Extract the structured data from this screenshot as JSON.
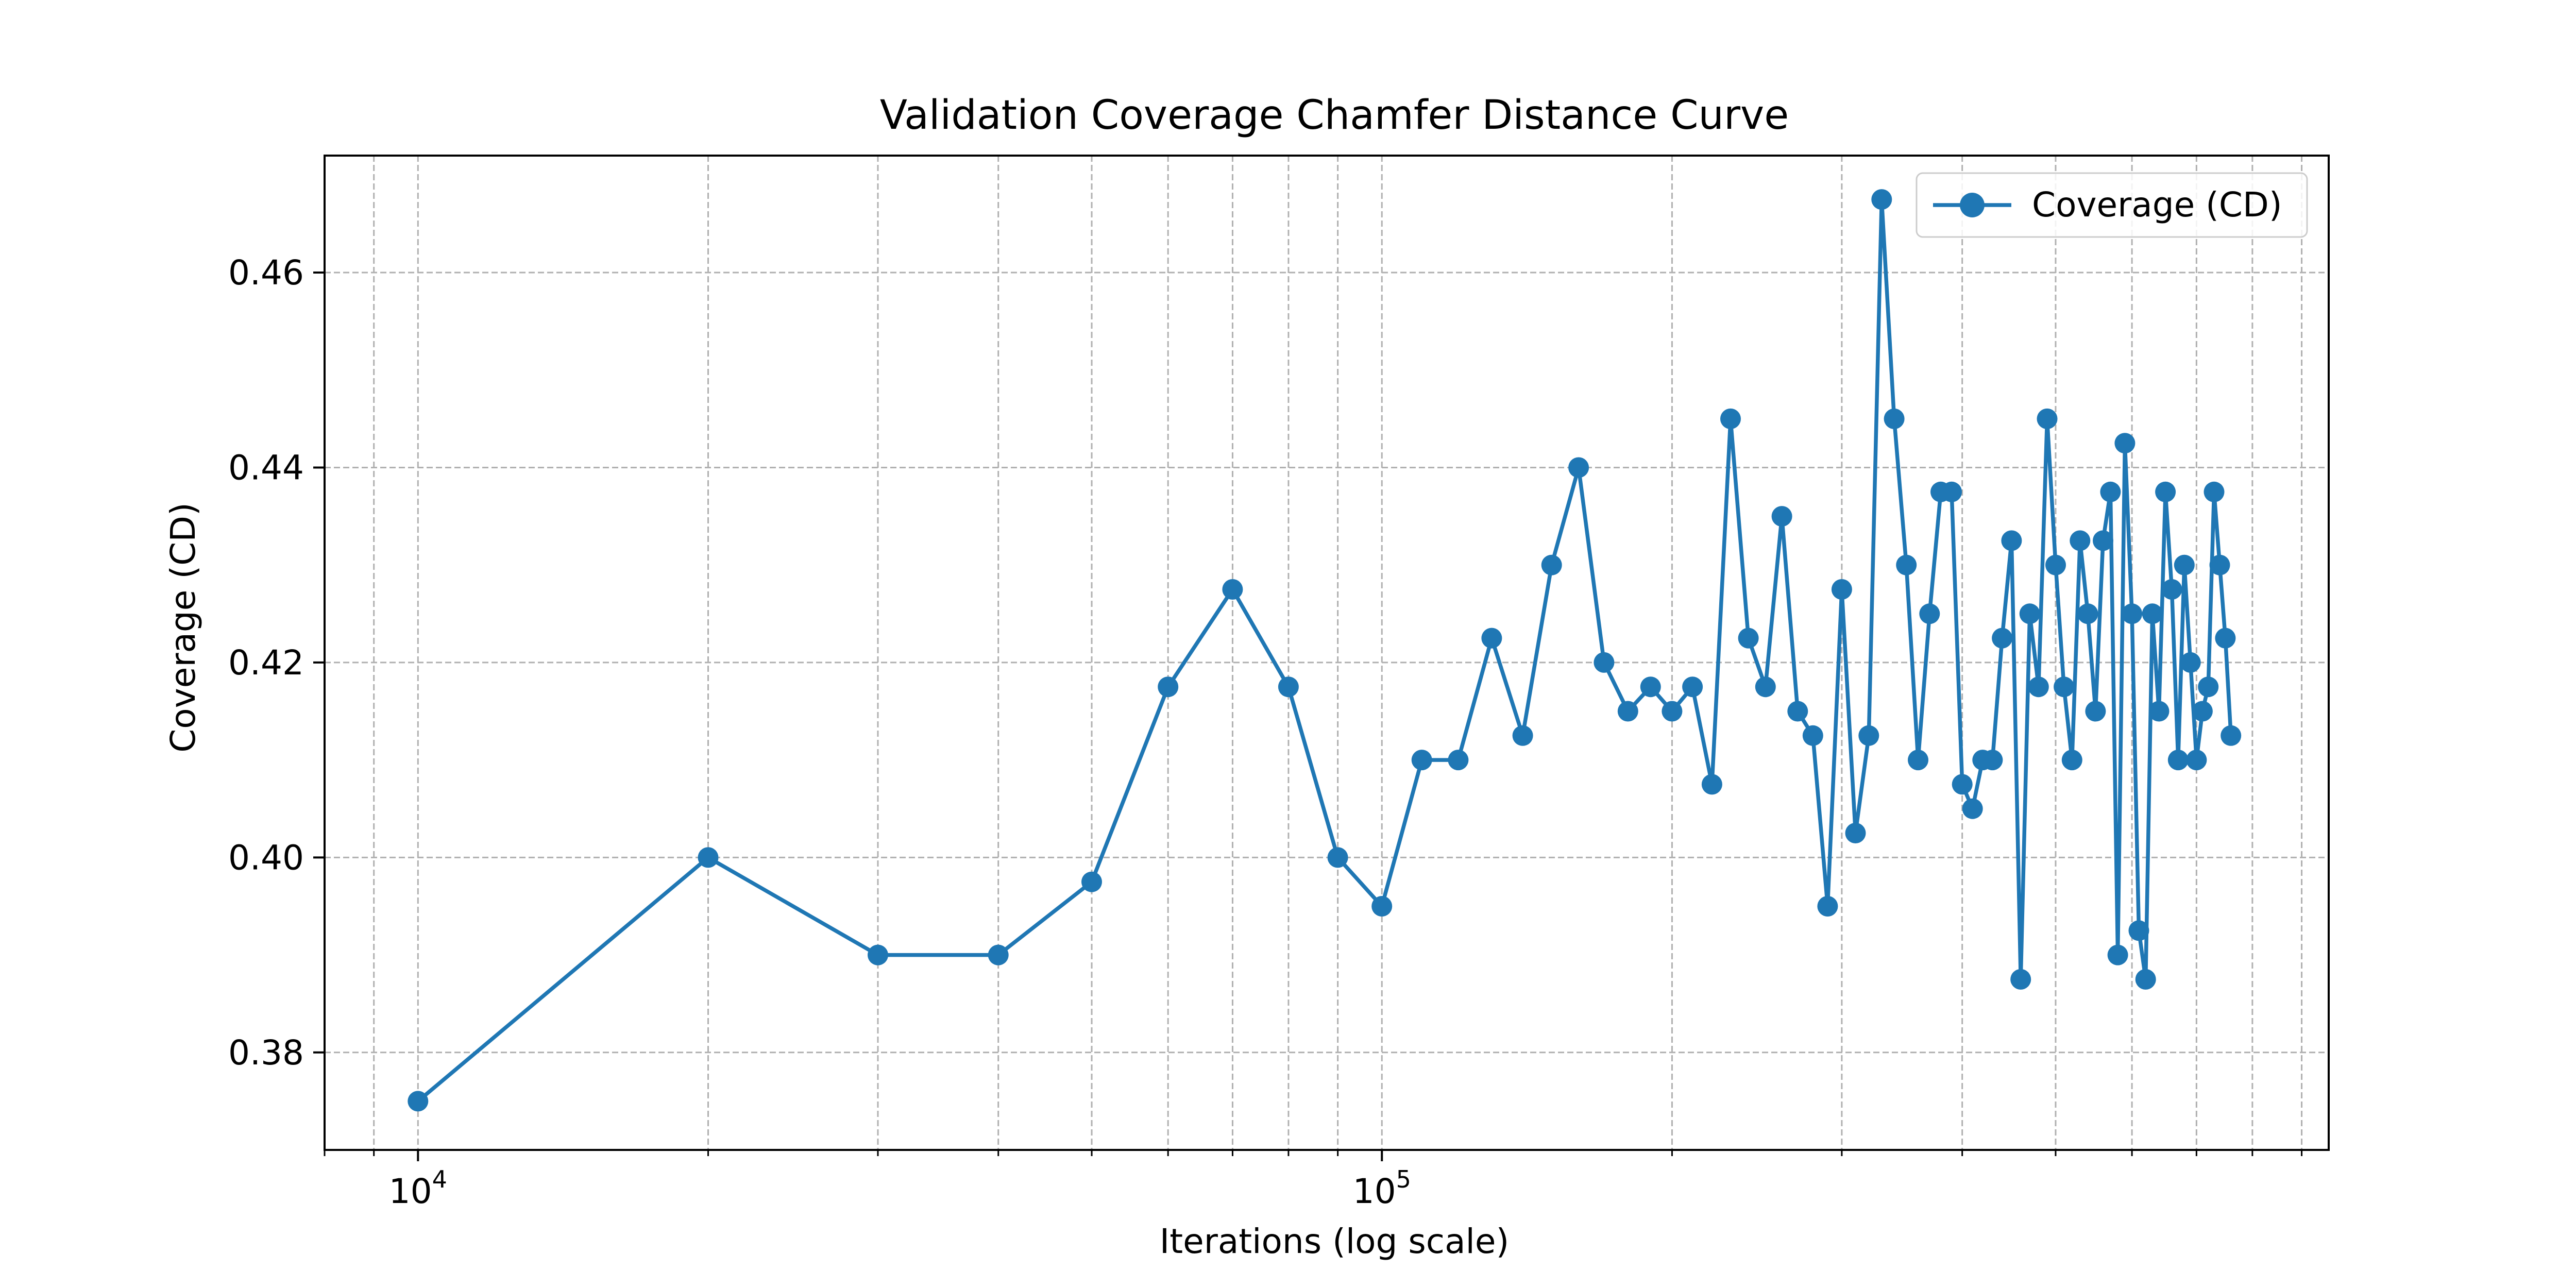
{
  "chart_data": {
    "type": "line",
    "title": "Validation Coverage Chamfer Distance Curve",
    "xlabel": "Iterations (log scale)",
    "ylabel": "Coverage (CD)",
    "xscale": "log",
    "xlim": [
      8000,
      960000
    ],
    "ylim": [
      0.37,
      0.472
    ],
    "yticks": [
      0.38,
      0.4,
      0.42,
      0.44,
      0.46
    ],
    "ytick_labels": [
      "0.38",
      "0.40",
      "0.42",
      "0.44",
      "0.46"
    ],
    "xtick_major": [
      10000,
      100000
    ],
    "xtick_major_labels": [
      {
        "base": "10",
        "exp": "4"
      },
      {
        "base": "10",
        "exp": "5"
      }
    ],
    "grid": true,
    "grid_style": "dashed",
    "legend_position": "top-right",
    "series": [
      {
        "name": "Coverage (CD)",
        "color": "#1f77b4",
        "marker": "circle",
        "x": [
          10000,
          20000,
          30000,
          40000,
          50000,
          60000,
          70000,
          80000,
          90000,
          100000,
          110000,
          120000,
          130000,
          140000,
          150000,
          160000,
          170000,
          180000,
          190000,
          200000,
          210000,
          220000,
          230000,
          240000,
          250000,
          260000,
          270000,
          280000,
          290000,
          300000,
          310000,
          320000,
          330000,
          340000,
          350000,
          360000,
          370000,
          380000,
          390000,
          400000,
          410000,
          420000,
          430000,
          440000,
          450000,
          460000,
          470000,
          480000,
          490000,
          500000,
          510000,
          520000,
          530000,
          540000,
          550000,
          560000,
          570000,
          580000,
          590000,
          600000,
          610000,
          620000,
          630000,
          640000,
          650000,
          660000,
          670000,
          680000,
          690000,
          700000,
          710000,
          720000,
          730000,
          740000,
          750000,
          760000
        ],
        "y": [
          0.375,
          0.4,
          0.39,
          0.39,
          0.3975,
          0.4175,
          0.4275,
          0.4175,
          0.4,
          0.395,
          0.41,
          0.41,
          0.4225,
          0.4125,
          0.43,
          0.44,
          0.42,
          0.415,
          0.4175,
          0.415,
          0.4175,
          0.4075,
          0.445,
          0.4225,
          0.4175,
          0.435,
          0.415,
          0.4125,
          0.395,
          0.4275,
          0.4025,
          0.4125,
          0.4675,
          0.445,
          0.43,
          0.41,
          0.425,
          0.4375,
          0.4375,
          0.4075,
          0.405,
          0.41,
          0.41,
          0.4225,
          0.4325,
          0.3875,
          0.425,
          0.4175,
          0.445,
          0.43,
          0.4175,
          0.41,
          0.4325,
          0.425,
          0.415,
          0.4325,
          0.4375,
          0.39,
          0.4425,
          0.425,
          0.3925,
          0.3875,
          0.425,
          0.415,
          0.4375,
          0.4275,
          0.41,
          0.43,
          0.42,
          0.41,
          0.415,
          0.4175,
          0.4375,
          0.43,
          0.4225,
          0.4125
        ]
      }
    ]
  }
}
